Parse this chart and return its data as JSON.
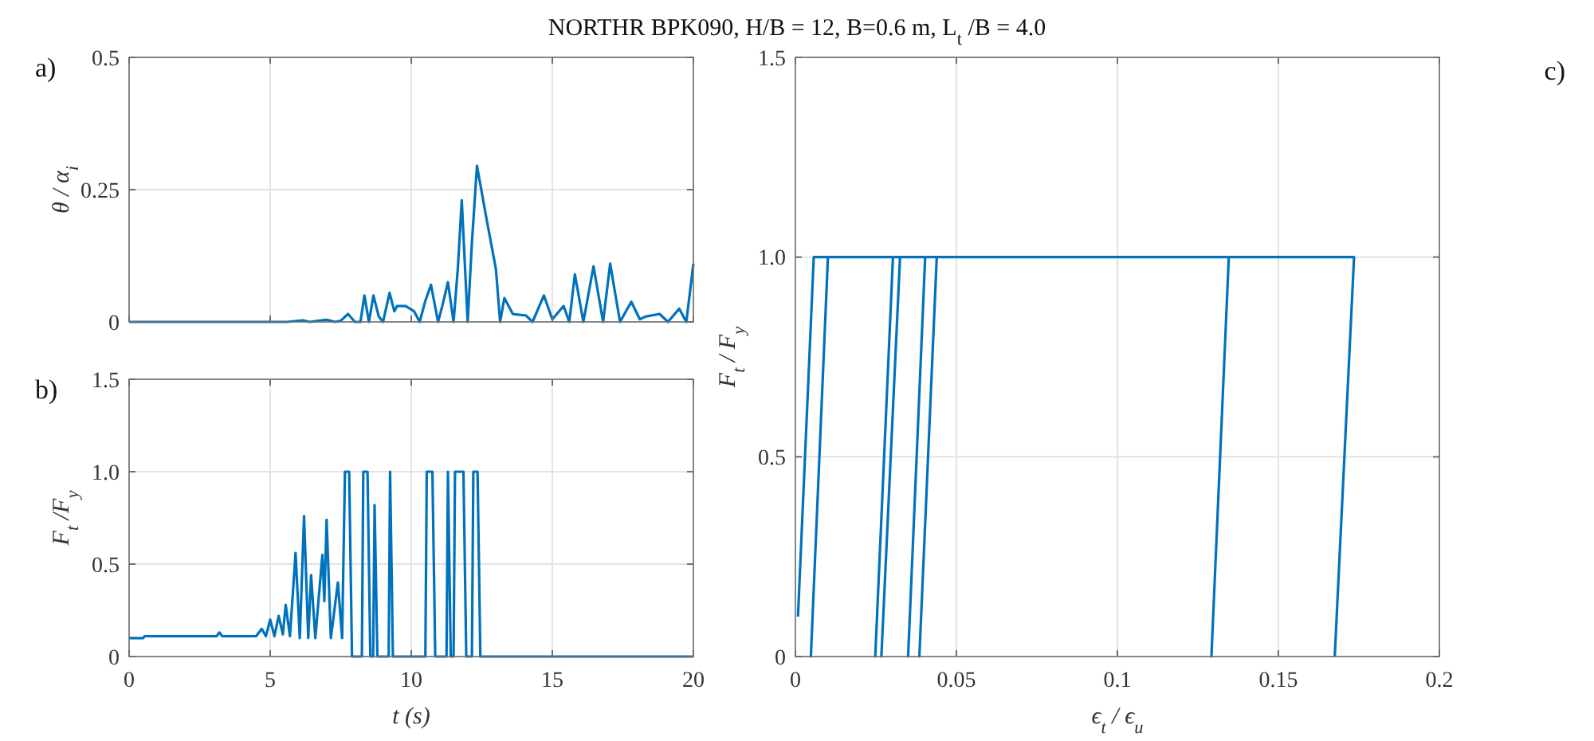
{
  "chart_data": [
    {
      "type": "line",
      "title": "NORTHR BPK090, H/B = 12, B=0.6 m, L$_{t}$ /B = 4.0",
      "ylabel": "θ / α$_{i}$",
      "annotations": [
        "a)"
      ],
      "xlim": [
        0,
        20
      ],
      "xticks": [
        0,
        5,
        10,
        15,
        20
      ],
      "ylim": [
        0,
        0.5
      ],
      "yticks": [
        0,
        0.25,
        0.5
      ],
      "grid": true,
      "tick_labels": "y",
      "series": [
        {
          "color": "#0072bd",
          "x": [
            0,
            5.0,
            5.6,
            6.15,
            6.4,
            6.7,
            7.0,
            7.3,
            7.5,
            7.76,
            8.0,
            8.2,
            8.34,
            8.5,
            8.66,
            8.85,
            9.0,
            9.23,
            9.4,
            9.5,
            9.8,
            10.1,
            10.3,
            10.5,
            10.7,
            10.95,
            11.1,
            11.3,
            11.5,
            11.65,
            11.79,
            12.0,
            12.15,
            12.33,
            12.65,
            13.0,
            13.15,
            13.3,
            13.6,
            14.07,
            14.3,
            14.7,
            15.0,
            15.4,
            15.6,
            15.8,
            16.1,
            16.46,
            16.8,
            17.05,
            17.4,
            17.8,
            18.1,
            18.3,
            18.8,
            19.1,
            19.5,
            19.75,
            20
          ],
          "values": [
            0,
            0,
            0,
            0.003,
            0,
            0.002,
            0.004,
            0,
            0.002,
            0.015,
            0,
            0,
            0.05,
            0,
            0.05,
            0.01,
            0,
            0.055,
            0.02,
            0.03,
            0.03,
            0.02,
            0,
            0.04,
            0.07,
            0,
            0.03,
            0.075,
            0,
            0.1,
            0.23,
            0,
            0.15,
            0.295,
            0.2,
            0.1,
            0,
            0.045,
            0.015,
            0.012,
            0,
            0.05,
            0.005,
            0.03,
            0,
            0.09,
            0,
            0.105,
            0,
            0.11,
            0,
            0.038,
            0.005,
            0.01,
            0.015,
            0,
            0.025,
            0,
            0.11
          ]
        }
      ]
    },
    {
      "type": "line",
      "xlabel": "t (s)",
      "ylabel": "F$_{t}$ /F$_{y}$",
      "annotations": [
        "b)"
      ],
      "xlim": [
        0,
        20
      ],
      "xticks": [
        0,
        5,
        10,
        15,
        20
      ],
      "ylim": [
        0,
        1.5
      ],
      "yticks": [
        0,
        0.5,
        {
          "value": 1,
          "label": "1.0"
        },
        1.5
      ],
      "grid": true,
      "series": [
        {
          "color": "#0072bd",
          "x": [
            0,
            0.5,
            0.55,
            3.1,
            3.2,
            3.3,
            4.5,
            4.7,
            4.85,
            5.0,
            5.15,
            5.3,
            5.45,
            5.55,
            5.7,
            5.9,
            6.05,
            6.2,
            6.35,
            6.45,
            6.6,
            6.85,
            6.92,
            7.0,
            7.15,
            7.4,
            7.55,
            7.65,
            7.8,
            7.9,
            8.25,
            8.3,
            8.45,
            8.55,
            8.65,
            8.7,
            8.8,
            9.2,
            9.25,
            9.35,
            10.5,
            10.55,
            10.75,
            10.85,
            11.25,
            11.3,
            11.4,
            11.5,
            11.55,
            11.85,
            11.95,
            12.15,
            12.2,
            12.35,
            12.45,
            20
          ],
          "values": [
            0.1,
            0.1,
            0.11,
            0.11,
            0.13,
            0.11,
            0.11,
            0.15,
            0.11,
            0.2,
            0.11,
            0.22,
            0.12,
            0.28,
            0.11,
            0.56,
            0.1,
            0.76,
            0.1,
            0.44,
            0.1,
            0.55,
            0.3,
            0.74,
            0.1,
            0.4,
            0.1,
            1,
            1,
            0,
            0,
            1,
            1,
            0,
            0,
            0.82,
            0,
            0,
            1,
            0,
            0,
            1,
            1,
            0,
            0,
            1,
            0,
            0,
            1,
            1,
            0,
            0,
            1,
            1,
            0,
            0
          ]
        }
      ]
    },
    {
      "type": "line",
      "xlabel": "ϵ$_{t}$ / ϵ$_{u}$",
      "ylabel": "F$_{t}$ / F$_{y}$",
      "annotations": [
        "c)"
      ],
      "xlim": [
        0,
        0.2
      ],
      "xticks": [
        0,
        0.05,
        0.1,
        0.15,
        0.2
      ],
      "ylim": [
        0,
        1.5
      ],
      "yticks": [
        0,
        0.5,
        {
          "value": 1,
          "label": "1.0"
        },
        1.5
      ],
      "grid": true,
      "series": [
        {
          "color": "#0072bd",
          "x": [
            0.0008,
            0.0057,
            0.0101,
            0.0048,
            0.0101,
            0.0303,
            0.0248,
            0.0303,
            0.0325,
            0.0267,
            0.0325,
            0.0403,
            0.035,
            0.0403,
            0.0439,
            0.0385,
            0.0439,
            0.1346,
            0.1292,
            0.1346,
            0.1735,
            0.1675
          ],
          "values": [
            0.1,
            1,
            1,
            0,
            1,
            1,
            0,
            1,
            1,
            0,
            1,
            1,
            0,
            1,
            1,
            0,
            1,
            1,
            0,
            1,
            1,
            0
          ]
        }
      ]
    }
  ]
}
